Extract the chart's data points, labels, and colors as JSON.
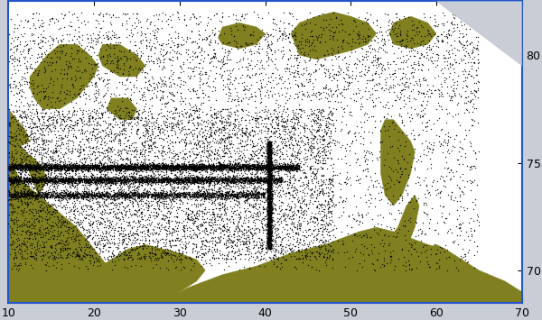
{
  "xlim": [
    10,
    70
  ],
  "ylim": [
    68.5,
    82.5
  ],
  "xticks": [
    10,
    20,
    30,
    40,
    50,
    60,
    70
  ],
  "yticks": [
    70,
    75,
    80
  ],
  "background_color": "#c8cdd6",
  "ocean_color": "#ffffff",
  "land_color": "#808020",
  "dot_color": "#000000",
  "dot_size": 1.2,
  "border_color": "#2255cc",
  "fig_width": 6.0,
  "fig_height": 3.55,
  "dpi": 100,
  "random_seed": 42
}
